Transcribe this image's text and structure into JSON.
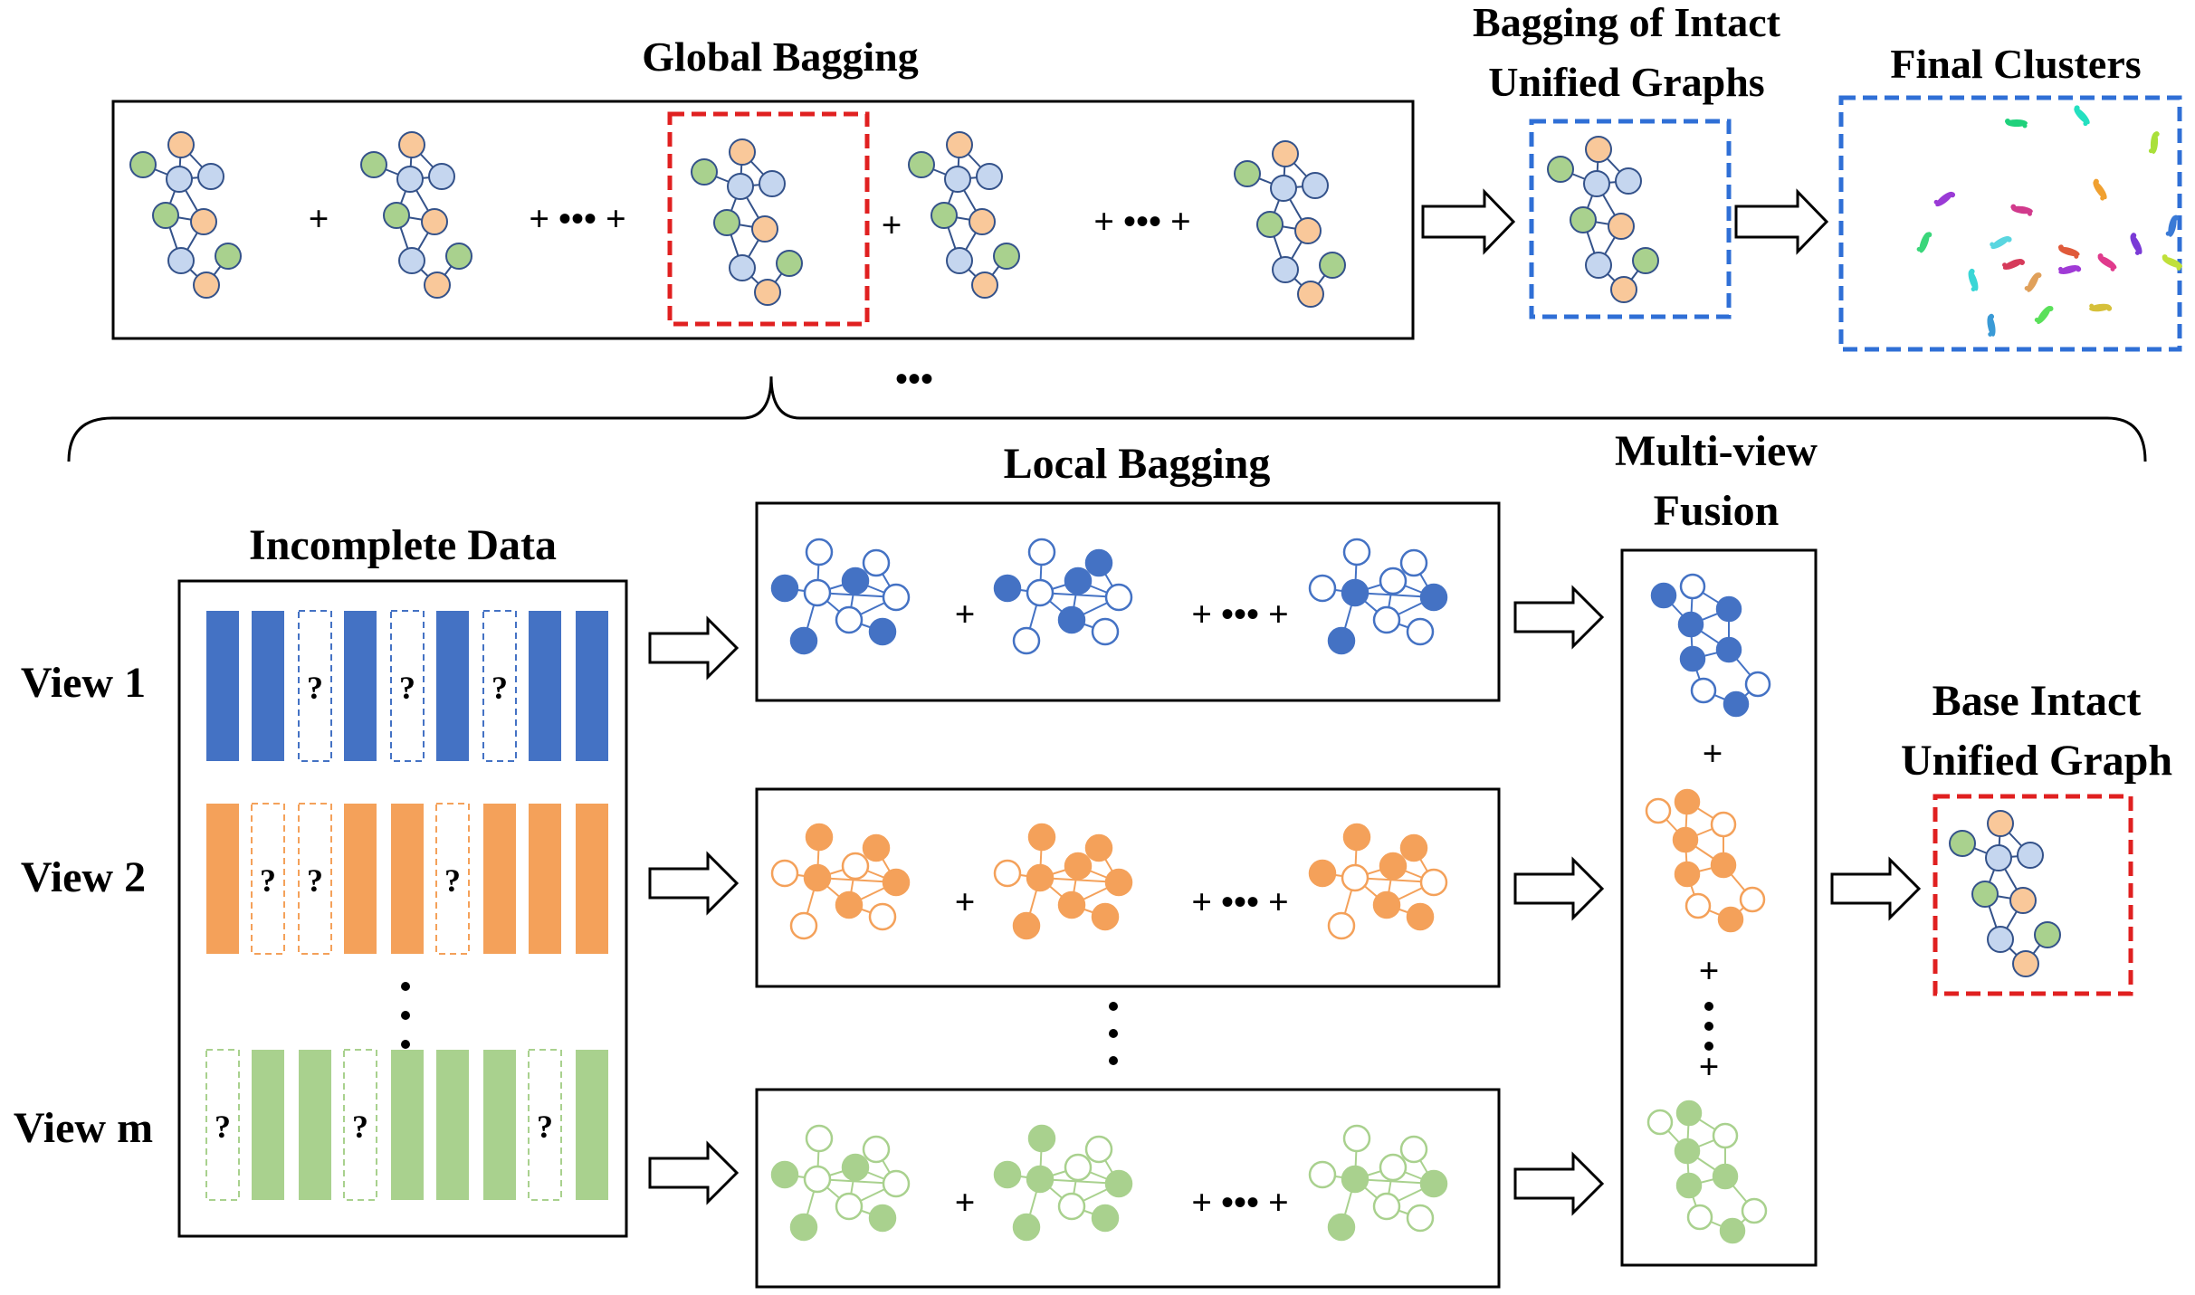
{
  "top": {
    "global_bagging_title": "Global Bagging",
    "bagging_intact_title_1": "Bagging of Intact",
    "bagging_intact_title_2": "Unified Graphs",
    "final_clusters_title": "Final Clusters",
    "plus": "+",
    "plus_dots_plus": "+ ••• +",
    "ellipsis": "•••"
  },
  "incomplete": {
    "title": "Incomplete Data",
    "missing_mark": "?",
    "views": [
      {
        "label": "View 1",
        "color": "#4472c4",
        "pattern": [
          1,
          1,
          0,
          1,
          0,
          1,
          0,
          1,
          1
        ]
      },
      {
        "label": "View 2",
        "color": "#f4a15a",
        "pattern": [
          1,
          0,
          0,
          1,
          1,
          0,
          1,
          1,
          1
        ]
      },
      {
        "label": "View m",
        "color": "#a9d18e",
        "pattern": [
          0,
          1,
          1,
          0,
          1,
          1,
          1,
          0,
          1
        ]
      }
    ]
  },
  "local": {
    "title": "Local Bagging",
    "plus": "+",
    "plus_dots_plus": "+ ••• +"
  },
  "fusion": {
    "title_1": "Multi-view",
    "title_2": "Fusion",
    "plus": "+"
  },
  "base": {
    "title_1": "Base Intact",
    "title_2": "Unified Graph"
  },
  "colors": {
    "node_blue_light": "#c5d6ef",
    "node_orange_light": "#f9c89a",
    "node_green": "#a9d18e",
    "view_blue": "#4472c4",
    "view_orange": "#f4a15a",
    "view_green": "#a9d18e",
    "dash_red": "#e02020",
    "dash_blue": "#2f6fd6",
    "edge": "#34528a"
  },
  "clusters": [
    {
      "color": "#1fd17b"
    },
    {
      "color": "#24e0c0"
    },
    {
      "color": "#a9e03a"
    },
    {
      "color": "#9a3ad6"
    },
    {
      "color": "#d13a8c"
    },
    {
      "color": "#f0a030"
    },
    {
      "color": "#3a7ad6"
    },
    {
      "color": "#5ad6e0"
    },
    {
      "color": "#e05a3a"
    },
    {
      "color": "#7a3ad6"
    },
    {
      "color": "#3ad67a"
    },
    {
      "color": "#d63a5a"
    },
    {
      "color": "#c0e03a"
    },
    {
      "color": "#3ad6d6"
    },
    {
      "color": "#e0a05a"
    },
    {
      "color": "#a03ad6"
    },
    {
      "color": "#e03a8c"
    },
    {
      "color": "#3a9ad6"
    },
    {
      "color": "#5ae05a"
    },
    {
      "color": "#d6c03a"
    }
  ]
}
